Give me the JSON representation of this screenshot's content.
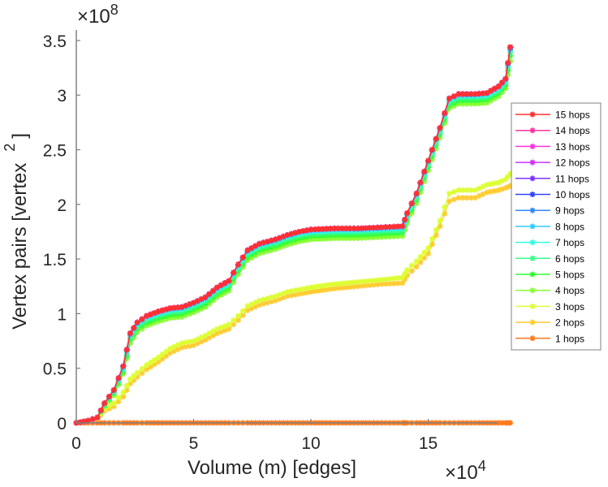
{
  "chart_data": {
    "type": "line",
    "title": "",
    "xlabel": "Volume (m) [edges]",
    "ylabel": "Vertex pairs [vertex",
    "ylabel_superscript": "2",
    "ylabel_close": "]",
    "x_exponent_label": "×10",
    "x_exponent": "4",
    "y_exponent_label": "×10",
    "y_exponent": "8",
    "xlim": [
      0,
      18.5
    ],
    "ylim": [
      0,
      3.6
    ],
    "xticks": [
      0,
      5,
      10,
      15
    ],
    "xtick_labels": [
      "0",
      "5",
      "10",
      "15"
    ],
    "yticks": [
      0,
      0.5,
      1,
      1.5,
      2,
      2.5,
      3,
      3.5
    ],
    "ytick_labels": [
      "0",
      "0.5",
      "1",
      "1.5",
      "2",
      "2.5",
      "3",
      "3.5"
    ],
    "grid": false,
    "legend_position": "right",
    "x": [
      0,
      0.5,
      0.9,
      1.2,
      1.6,
      2.0,
      2.3,
      2.6,
      3.0,
      3.5,
      4.0,
      4.5,
      5.0,
      5.5,
      6.0,
      6.5,
      6.9,
      7.3,
      7.8,
      8.5,
      9.0,
      9.5,
      10.0,
      11.0,
      12.0,
      13.0,
      13.9,
      14.1,
      14.5,
      15.0,
      15.5,
      15.9,
      16.3,
      17.0,
      17.5,
      18.0,
      18.3,
      18.5
    ],
    "series": [
      {
        "name": "15 hops",
        "color": "#ff3030",
        "values": [
          0,
          0.02,
          0.05,
          0.18,
          0.3,
          0.52,
          0.82,
          0.92,
          0.98,
          1.02,
          1.05,
          1.06,
          1.1,
          1.15,
          1.24,
          1.3,
          1.45,
          1.58,
          1.64,
          1.68,
          1.72,
          1.75,
          1.77,
          1.78,
          1.78,
          1.79,
          1.8,
          1.92,
          2.1,
          2.4,
          2.7,
          2.97,
          3.01,
          3.01,
          3.02,
          3.08,
          3.15,
          3.44
        ]
      },
      {
        "name": "14 hops",
        "color": "#ff3399",
        "values": [
          0,
          0.02,
          0.05,
          0.18,
          0.3,
          0.52,
          0.82,
          0.92,
          0.98,
          1.02,
          1.05,
          1.06,
          1.1,
          1.15,
          1.24,
          1.3,
          1.45,
          1.58,
          1.64,
          1.68,
          1.72,
          1.75,
          1.77,
          1.78,
          1.78,
          1.79,
          1.8,
          1.92,
          2.1,
          2.4,
          2.7,
          2.97,
          3.01,
          3.01,
          3.02,
          3.08,
          3.15,
          3.44
        ]
      },
      {
        "name": "13 hops",
        "color": "#ff33dd",
        "values": [
          0,
          0.02,
          0.05,
          0.18,
          0.3,
          0.52,
          0.82,
          0.92,
          0.98,
          1.02,
          1.05,
          1.06,
          1.1,
          1.15,
          1.24,
          1.3,
          1.45,
          1.58,
          1.64,
          1.68,
          1.72,
          1.75,
          1.77,
          1.78,
          1.78,
          1.79,
          1.8,
          1.92,
          2.1,
          2.4,
          2.7,
          2.97,
          3.01,
          3.01,
          3.02,
          3.08,
          3.15,
          3.44
        ]
      },
      {
        "name": "12 hops",
        "color": "#cc33ff",
        "values": [
          0,
          0.02,
          0.05,
          0.18,
          0.3,
          0.52,
          0.82,
          0.92,
          0.98,
          1.02,
          1.05,
          1.06,
          1.1,
          1.15,
          1.24,
          1.3,
          1.45,
          1.58,
          1.64,
          1.68,
          1.72,
          1.75,
          1.77,
          1.78,
          1.78,
          1.79,
          1.8,
          1.92,
          2.1,
          2.4,
          2.7,
          2.97,
          3.01,
          3.01,
          3.02,
          3.08,
          3.15,
          3.44
        ]
      },
      {
        "name": "11 hops",
        "color": "#7a33ff",
        "values": [
          0,
          0.02,
          0.05,
          0.18,
          0.3,
          0.52,
          0.82,
          0.92,
          0.98,
          1.02,
          1.05,
          1.06,
          1.1,
          1.15,
          1.24,
          1.3,
          1.45,
          1.58,
          1.64,
          1.68,
          1.72,
          1.75,
          1.77,
          1.78,
          1.78,
          1.79,
          1.8,
          1.92,
          2.1,
          2.4,
          2.7,
          2.97,
          3.01,
          3.01,
          3.02,
          3.08,
          3.15,
          3.44
        ]
      },
      {
        "name": "10 hops",
        "color": "#3344ff",
        "values": [
          0,
          0.02,
          0.05,
          0.18,
          0.3,
          0.52,
          0.82,
          0.92,
          0.98,
          1.02,
          1.05,
          1.06,
          1.1,
          1.15,
          1.24,
          1.3,
          1.45,
          1.58,
          1.64,
          1.68,
          1.72,
          1.75,
          1.77,
          1.78,
          1.78,
          1.79,
          1.8,
          1.92,
          2.1,
          2.4,
          2.7,
          2.97,
          3.01,
          3.01,
          3.02,
          3.08,
          3.15,
          3.44
        ]
      },
      {
        "name": "9 hops",
        "color": "#3388ff",
        "values": [
          0,
          0.02,
          0.05,
          0.18,
          0.3,
          0.52,
          0.82,
          0.92,
          0.98,
          1.02,
          1.05,
          1.06,
          1.1,
          1.15,
          1.24,
          1.3,
          1.45,
          1.58,
          1.64,
          1.68,
          1.72,
          1.75,
          1.77,
          1.78,
          1.78,
          1.79,
          1.8,
          1.92,
          2.1,
          2.4,
          2.7,
          2.97,
          3.01,
          3.01,
          3.02,
          3.08,
          3.15,
          3.43
        ]
      },
      {
        "name": "8 hops",
        "color": "#33ccff",
        "values": [
          0,
          0.02,
          0.05,
          0.18,
          0.3,
          0.51,
          0.81,
          0.91,
          0.97,
          1.01,
          1.04,
          1.05,
          1.09,
          1.14,
          1.23,
          1.29,
          1.44,
          1.57,
          1.63,
          1.67,
          1.71,
          1.74,
          1.76,
          1.77,
          1.77,
          1.78,
          1.79,
          1.91,
          2.09,
          2.39,
          2.69,
          2.96,
          3.0,
          3.0,
          3.01,
          3.07,
          3.14,
          3.42
        ]
      },
      {
        "name": "7 hops",
        "color": "#33ffdd",
        "values": [
          0,
          0.02,
          0.05,
          0.17,
          0.29,
          0.5,
          0.8,
          0.9,
          0.96,
          1.0,
          1.03,
          1.04,
          1.08,
          1.13,
          1.22,
          1.28,
          1.43,
          1.56,
          1.62,
          1.66,
          1.7,
          1.73,
          1.75,
          1.76,
          1.76,
          1.77,
          1.78,
          1.9,
          2.08,
          2.38,
          2.68,
          2.95,
          2.99,
          2.99,
          3.0,
          3.06,
          3.13,
          3.41
        ]
      },
      {
        "name": "6 hops",
        "color": "#33ff88",
        "values": [
          0,
          0.02,
          0.05,
          0.17,
          0.28,
          0.49,
          0.78,
          0.88,
          0.94,
          0.98,
          1.01,
          1.02,
          1.06,
          1.11,
          1.2,
          1.26,
          1.41,
          1.54,
          1.6,
          1.64,
          1.68,
          1.71,
          1.73,
          1.74,
          1.74,
          1.75,
          1.76,
          1.88,
          2.06,
          2.36,
          2.66,
          2.93,
          2.97,
          2.97,
          2.98,
          3.04,
          3.11,
          3.39
        ]
      },
      {
        "name": "5 hops",
        "color": "#33ff33",
        "values": [
          0,
          0.02,
          0.05,
          0.16,
          0.27,
          0.47,
          0.76,
          0.86,
          0.92,
          0.96,
          0.99,
          1.0,
          1.04,
          1.09,
          1.18,
          1.24,
          1.39,
          1.52,
          1.58,
          1.62,
          1.66,
          1.69,
          1.71,
          1.72,
          1.72,
          1.73,
          1.74,
          1.86,
          2.04,
          2.34,
          2.64,
          2.91,
          2.95,
          2.95,
          2.96,
          3.02,
          3.09,
          3.36
        ]
      },
      {
        "name": "4 hops",
        "color": "#88ff33",
        "values": [
          0,
          0.02,
          0.05,
          0.15,
          0.25,
          0.45,
          0.73,
          0.83,
          0.89,
          0.93,
          0.96,
          0.97,
          1.01,
          1.06,
          1.15,
          1.21,
          1.36,
          1.49,
          1.55,
          1.59,
          1.63,
          1.66,
          1.68,
          1.69,
          1.69,
          1.7,
          1.71,
          1.83,
          2.01,
          2.31,
          2.61,
          2.88,
          2.92,
          2.92,
          2.93,
          2.99,
          3.06,
          3.31
        ]
      },
      {
        "name": "3 hops",
        "color": "#ddff33",
        "values": [
          0,
          0.02,
          0.05,
          0.13,
          0.18,
          0.28,
          0.4,
          0.46,
          0.53,
          0.6,
          0.68,
          0.73,
          0.75,
          0.8,
          0.86,
          0.9,
          0.98,
          1.07,
          1.12,
          1.16,
          1.2,
          1.22,
          1.24,
          1.27,
          1.29,
          1.31,
          1.33,
          1.4,
          1.48,
          1.6,
          1.85,
          2.1,
          2.13,
          2.13,
          2.18,
          2.2,
          2.23,
          2.28
        ]
      },
      {
        "name": "2 hops",
        "color": "#ffcc33",
        "values": [
          0,
          0.02,
          0.04,
          0.11,
          0.15,
          0.24,
          0.36,
          0.42,
          0.49,
          0.56,
          0.64,
          0.69,
          0.71,
          0.76,
          0.82,
          0.86,
          0.94,
          1.03,
          1.08,
          1.12,
          1.16,
          1.18,
          1.2,
          1.23,
          1.25,
          1.27,
          1.28,
          1.35,
          1.43,
          1.55,
          1.8,
          2.03,
          2.06,
          2.06,
          2.11,
          2.13,
          2.15,
          2.17
        ]
      },
      {
        "name": "1 hops",
        "color": "#ff7a1a",
        "values": [
          0,
          0,
          0,
          0,
          0,
          0,
          0,
          0,
          0,
          0,
          0,
          0,
          0,
          0,
          0,
          0,
          0,
          0,
          0,
          0,
          0,
          0,
          0,
          0,
          0,
          0,
          0,
          0,
          0,
          0,
          0,
          0,
          0,
          0,
          0,
          0,
          0,
          0
        ]
      }
    ]
  }
}
